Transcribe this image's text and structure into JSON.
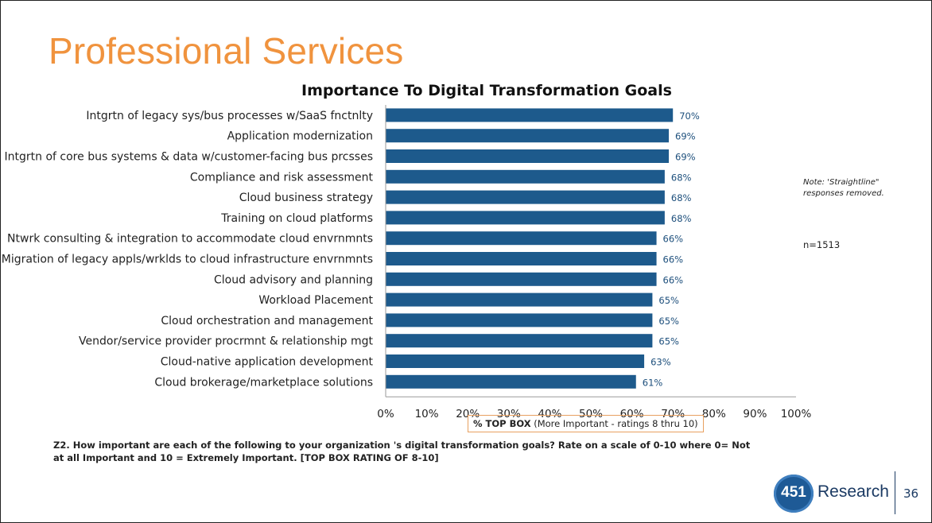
{
  "slide": {
    "title": "Professional Services",
    "note": "Note: 'Straightline\" responses removed.",
    "n_count": "n=1513",
    "question": "Z2. How important are each of the following to your organization 's digital transformation goals? Rate on a scale of 0-10 where 0= Not at all Important and 10 = Extremely Important. [TOP BOX RATING OF 8-10]",
    "page_number": "36",
    "logo": {
      "number": "451",
      "text": "Research"
    }
  },
  "colors": {
    "title": "#f0933e",
    "bar": "#1d5a8c",
    "value_label": "#1d4f7c",
    "brand": "#1e5a96"
  },
  "chart_data": {
    "type": "bar",
    "orientation": "horizontal",
    "title": "Importance To Digital Transformation Goals",
    "xlabel_bold": "% TOP BOX",
    "xlabel_rest": "(More Important - ratings 8 thru 10)",
    "xlim": [
      0,
      100
    ],
    "x_ticks": [
      "0%",
      "10%",
      "20%",
      "30%",
      "40%",
      "50%",
      "60%",
      "70%",
      "80%",
      "90%",
      "100%"
    ],
    "grid": false,
    "legend": "none",
    "categories": [
      "Intgrtn of legacy sys/bus processes w/SaaS fnctnlty",
      "Application modernization",
      "Intgrtn of core bus systems & data w/customer-facing bus prcsses",
      "Compliance and risk assessment",
      "Cloud business strategy",
      "Training on cloud platforms",
      "Ntwrk consulting & integration to accommodate cloud envrnmnts",
      "Migration of legacy appls/wrklds to cloud infrastructure envrnmnts",
      "Cloud advisory and planning",
      "Workload Placement",
      "Cloud orchestration and management",
      "Vendor/service provider procrmnt & relationship mgt",
      "Cloud-native application development",
      "Cloud brokerage/marketplace solutions"
    ],
    "values": [
      70,
      69,
      69,
      68,
      68,
      68,
      66,
      66,
      66,
      65,
      65,
      65,
      63,
      61
    ],
    "value_labels": [
      "70%",
      "69%",
      "69%",
      "68%",
      "68%",
      "68%",
      "66%",
      "66%",
      "66%",
      "65%",
      "65%",
      "65%",
      "63%",
      "61%"
    ]
  }
}
